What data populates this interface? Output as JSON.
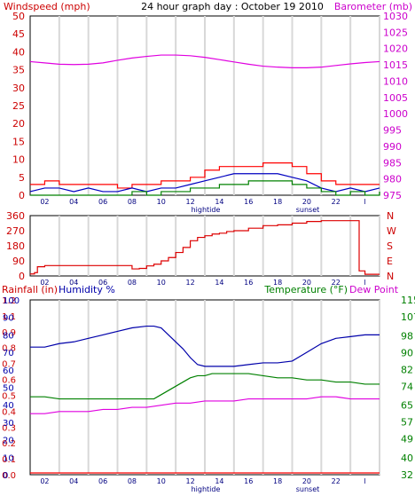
{
  "chart_data": [
    {
      "type": "line",
      "title": "24 hour graph day : October 19 2010",
      "left_axis_label": "Windspeed (mph)",
      "right_axis_label": "Barometer (mb)",
      "left_ylim": [
        0,
        50
      ],
      "left_ticks": [
        "0",
        "5",
        "10",
        "15",
        "20",
        "25",
        "30",
        "35",
        "40",
        "45",
        "50"
      ],
      "right_ylim": [
        975,
        1030
      ],
      "right_ticks": [
        "975",
        "980",
        "985",
        "990",
        "995",
        "1000",
        "1005",
        "1010",
        "1015",
        "1020",
        "1025",
        "1030"
      ],
      "x_tick_labels": [
        "02",
        "04",
        "06",
        "08",
        "10",
        "12",
        "14",
        "16",
        "18",
        "20",
        "22",
        "l"
      ],
      "annotations": [
        "hightide",
        "sunset"
      ],
      "grid": true,
      "colors": {
        "wind_gust": "#ff0000",
        "wind_avg": "#0000c0",
        "wind_low": "#008000",
        "barometer": "#e000e0",
        "axis_left": "#cc0000",
        "axis_right": "#cc00cc"
      },
      "series": [
        {
          "axis": "right",
          "x": [
            0,
            1,
            2,
            3,
            4,
            5,
            6,
            7,
            8,
            9,
            10,
            11,
            12,
            13,
            14,
            15,
            16,
            17,
            18,
            19,
            20,
            21,
            22,
            23,
            24
          ],
          "values": [
            1016,
            1015.6,
            1015.2,
            1015.1,
            1015.2,
            1015.6,
            1016.4,
            1017.1,
            1017.6,
            1018,
            1018,
            1017.8,
            1017.3,
            1016.6,
            1015.9,
            1015.2,
            1014.6,
            1014.3,
            1014.1,
            1014.1,
            1014.3,
            1014.8,
            1015.3,
            1015.7,
            1016
          ]
        },
        {
          "axis": "left",
          "x": [
            0,
            1,
            2,
            3,
            4,
            5,
            6,
            7,
            8,
            9,
            10,
            11,
            12,
            13,
            14,
            15,
            16,
            17,
            18,
            19,
            20,
            21,
            22,
            23,
            24
          ],
          "values": [
            3,
            4,
            3,
            3,
            3,
            3,
            2,
            3,
            3,
            4,
            4,
            5,
            7,
            8,
            8,
            8,
            9,
            9,
            8,
            6,
            4,
            3,
            3,
            3,
            3
          ]
        },
        {
          "axis": "left",
          "x": [
            0,
            1,
            2,
            3,
            4,
            5,
            6,
            7,
            8,
            9,
            10,
            11,
            12,
            13,
            14,
            15,
            16,
            17,
            18,
            19,
            20,
            21,
            22,
            23,
            24
          ],
          "values": [
            1,
            2,
            2,
            1,
            2,
            1,
            1,
            2,
            1,
            2,
            2,
            3,
            4,
            5,
            6,
            6,
            6,
            6,
            5,
            4,
            2,
            1,
            2,
            1,
            2
          ]
        },
        {
          "axis": "left",
          "x": [
            0,
            1,
            2,
            3,
            4,
            5,
            6,
            7,
            8,
            9,
            10,
            11,
            12,
            13,
            14,
            15,
            16,
            17,
            18,
            19,
            20,
            21,
            22,
            23,
            24
          ],
          "values": [
            0,
            0,
            0,
            0,
            0,
            0,
            0,
            1,
            0,
            1,
            1,
            2,
            2,
            3,
            3,
            4,
            4,
            4,
            3,
            2,
            1,
            0,
            1,
            0,
            1
          ]
        }
      ]
    },
    {
      "type": "line",
      "left_ylim": [
        0,
        360
      ],
      "left_ticks": [
        "0",
        "90",
        "180",
        "270",
        "360"
      ],
      "right_ticks": [
        "N",
        "W",
        "S",
        "E",
        "N"
      ],
      "x_tick_labels": [
        "02",
        "04",
        "06",
        "08",
        "10",
        "12",
        "14",
        "16",
        "18",
        "20",
        "22",
        "l"
      ],
      "annotations": [
        "hightide",
        "sunset"
      ],
      "grid": true,
      "colors": {
        "direction": "#dd0000",
        "axis_left": "#cc0000",
        "axis_right": "#cc0000"
      },
      "series": [
        {
          "axis": "left",
          "x": [
            0,
            0.3,
            0.5,
            1,
            2,
            3,
            4,
            5,
            6,
            6.8,
            7,
            7.5,
            8,
            8.5,
            9,
            9.5,
            10,
            10.5,
            11,
            11.5,
            12,
            12.5,
            13,
            13.5,
            14,
            15,
            16,
            17,
            18,
            19,
            20,
            21,
            22,
            22.4,
            22.6,
            23,
            23.6,
            24
          ],
          "values": [
            12,
            20,
            55,
            62,
            62,
            62,
            62,
            62,
            62,
            62,
            42,
            45,
            60,
            70,
            90,
            110,
            140,
            170,
            210,
            230,
            240,
            250,
            255,
            265,
            270,
            285,
            300,
            305,
            315,
            325,
            330,
            330,
            330,
            330,
            30,
            10,
            10,
            10
          ]
        }
      ]
    },
    {
      "type": "line",
      "left_labels": [
        "Rainfall (in)",
        "Humidity %"
      ],
      "right_labels": [
        "Temperature (°F)",
        "Dew Point"
      ],
      "rain_ticks": [
        "0.0",
        "0.1",
        "0.2",
        "0.3",
        "0.4",
        "0.5",
        "0.6",
        "0.7",
        "0.8",
        "0.9",
        "1.1",
        "1.2"
      ],
      "humidity_ticks": [
        "0",
        "10",
        "20",
        "30",
        "40",
        "50",
        "60",
        "70",
        "80",
        "90",
        "100"
      ],
      "right_ylim": [
        32,
        115
      ],
      "right_ticks": [
        "32",
        "40",
        "49",
        "57",
        "65",
        "74",
        "82",
        "90",
        "98",
        "107",
        "115"
      ],
      "x_tick_labels": [
        "02",
        "04",
        "06",
        "08",
        "10",
        "12",
        "14",
        "16",
        "18",
        "20",
        "22",
        "l"
      ],
      "annotations": [
        "hightide",
        "sunset"
      ],
      "grid": true,
      "colors": {
        "humidity": "#0000aa",
        "temperature": "#008000",
        "dew_point": "#e000e0",
        "rain": "#ff0000",
        "axis_rain": "#cc0000",
        "axis_humidity": "#0000aa",
        "axis_temp": "#008000"
      },
      "series": [
        {
          "axis": "humidity",
          "x": [
            0,
            1,
            2,
            3,
            4,
            5,
            6,
            7,
            8,
            8.5,
            9,
            9.5,
            10,
            10.5,
            11,
            11.5,
            12,
            13,
            14,
            15,
            16,
            17,
            18,
            19,
            20,
            21,
            22,
            23,
            24
          ],
          "values": [
            73,
            73,
            75,
            76,
            78,
            80,
            82,
            84,
            85,
            85,
            84,
            80,
            76,
            72,
            67,
            63,
            62,
            62,
            62,
            63,
            64,
            64,
            65,
            70,
            75,
            78,
            79,
            80,
            80
          ]
        },
        {
          "axis": "temperature",
          "x": [
            0,
            1,
            2,
            3,
            4,
            5,
            6,
            7,
            8,
            8.5,
            9,
            9.5,
            10,
            10.5,
            11,
            11.5,
            12,
            12.5,
            13,
            14,
            15,
            16,
            17,
            18,
            19,
            20,
            21,
            22,
            23,
            24
          ],
          "values": [
            69,
            69,
            68,
            68,
            68,
            68,
            68,
            68,
            68,
            68,
            70,
            72,
            74,
            76,
            78,
            79,
            79,
            80,
            80,
            80,
            80,
            79,
            78,
            78,
            77,
            77,
            76,
            76,
            75,
            75
          ]
        },
        {
          "axis": "temperature",
          "x": [
            0,
            1,
            2,
            3,
            4,
            5,
            6,
            7,
            8,
            9,
            10,
            11,
            12,
            13,
            14,
            15,
            16,
            17,
            18,
            19,
            20,
            21,
            22,
            23,
            24
          ],
          "values": [
            61,
            61,
            62,
            62,
            62,
            63,
            63,
            64,
            64,
            65,
            66,
            66,
            67,
            67,
            67,
            68,
            68,
            68,
            68,
            68,
            69,
            69,
            68,
            68,
            68
          ]
        },
        {
          "axis": "rain",
          "x": [
            0,
            24
          ],
          "values": [
            0,
            0
          ]
        }
      ]
    }
  ]
}
